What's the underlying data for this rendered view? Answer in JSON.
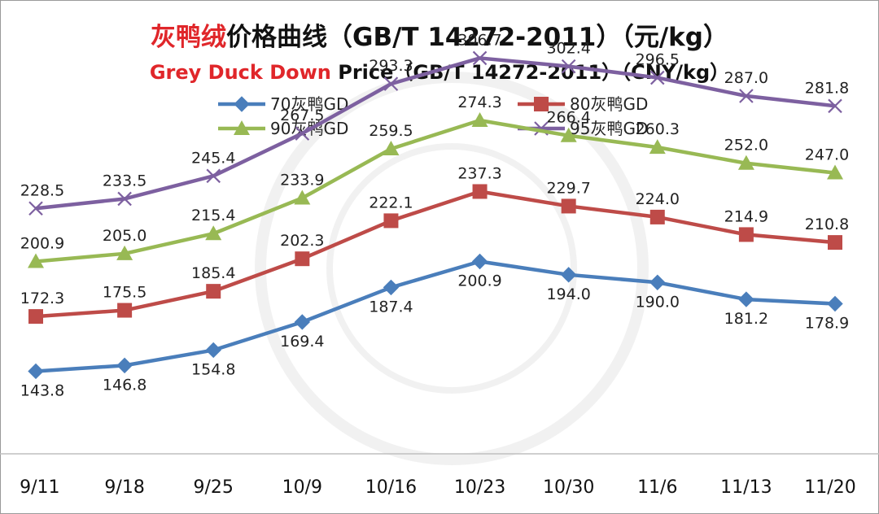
{
  "chart_data": {
    "type": "line",
    "title_highlight": "灰鸭绒",
    "title_rest": "价格曲线（GB/T 14272-2011）（元/kg）",
    "subtitle_highlight": "Grey Duck Down",
    "subtitle_rest": " Price（GB/T 14272-2011）（CNY/kg）",
    "categories": [
      "9/11",
      "9/18",
      "9/25",
      "10/9",
      "10/16",
      "10/23",
      "10/30",
      "11/6",
      "11/13",
      "11/20"
    ],
    "ylim": [
      100,
      320
    ],
    "grid": false,
    "legend_position": "top",
    "series": [
      {
        "name": "70灰鸭GD",
        "color": "#4a7ebb",
        "marker": "diamond",
        "values": [
          143.8,
          146.8,
          154.8,
          169.4,
          187.4,
          200.9,
          194.0,
          190.0,
          181.2,
          178.9
        ],
        "labels": [
          "143.8",
          "146.8",
          "154.8",
          "169.4",
          "187.4",
          "200.9",
          "194.0",
          "190.0",
          "181.2",
          "178.9"
        ]
      },
      {
        "name": "80灰鸭GD",
        "color": "#be4b48",
        "marker": "square",
        "values": [
          172.3,
          175.5,
          185.4,
          202.3,
          222.1,
          237.3,
          229.7,
          224.0,
          214.9,
          210.8
        ],
        "labels": [
          "172.3",
          "175.5",
          "185.4",
          "202.3",
          "222.1",
          "237.3",
          "229.7",
          "224.0",
          "214.9",
          "210.8"
        ]
      },
      {
        "name": "90灰鸭GD",
        "color": "#98b954",
        "marker": "triangle",
        "values": [
          200.9,
          205.0,
          215.4,
          233.9,
          259.5,
          274.3,
          266.4,
          260.3,
          252.0,
          247.0
        ],
        "labels": [
          "200.9",
          "205.0",
          "215.4",
          "233.9",
          "259.5",
          "274.3",
          "266.4",
          "260.3",
          "252.0",
          "247.0"
        ]
      },
      {
        "name": "95灰鸭GD",
        "color": "#7d60a0",
        "marker": "x",
        "values": [
          228.5,
          233.5,
          245.4,
          267.5,
          293.3,
          306.7,
          302.4,
          296.5,
          287.0,
          281.8
        ],
        "labels": [
          "228.5",
          "233.5",
          "245.4",
          "267.5",
          "293.3",
          "306.7",
          "302.4",
          "296.5",
          "287.0",
          "281.8"
        ]
      }
    ]
  }
}
